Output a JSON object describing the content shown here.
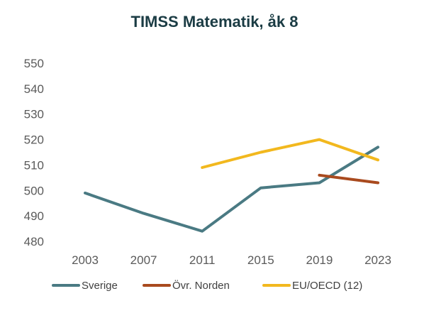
{
  "chart_data": {
    "type": "line",
    "title": "TIMSS Matematik, åk 8",
    "xlabel": "",
    "ylabel": "",
    "categories": [
      "2003",
      "2007",
      "2011",
      "2015",
      "2019",
      "2023"
    ],
    "ylim": [
      480,
      550
    ],
    "yticks": [
      480,
      490,
      500,
      510,
      520,
      530,
      540,
      550
    ],
    "grid": false,
    "legend_position": "bottom",
    "series": [
      {
        "name": "Sverige",
        "color": "#4a7a83",
        "values": [
          499,
          491,
          484,
          501,
          503,
          517
        ]
      },
      {
        "name": "Övr. Norden",
        "color": "#a94a1e",
        "values": [
          null,
          null,
          null,
          null,
          506,
          503
        ]
      },
      {
        "name": "EU/OECD (12)",
        "color": "#f2b81e",
        "values": [
          null,
          null,
          509,
          515,
          520,
          512
        ]
      }
    ]
  }
}
